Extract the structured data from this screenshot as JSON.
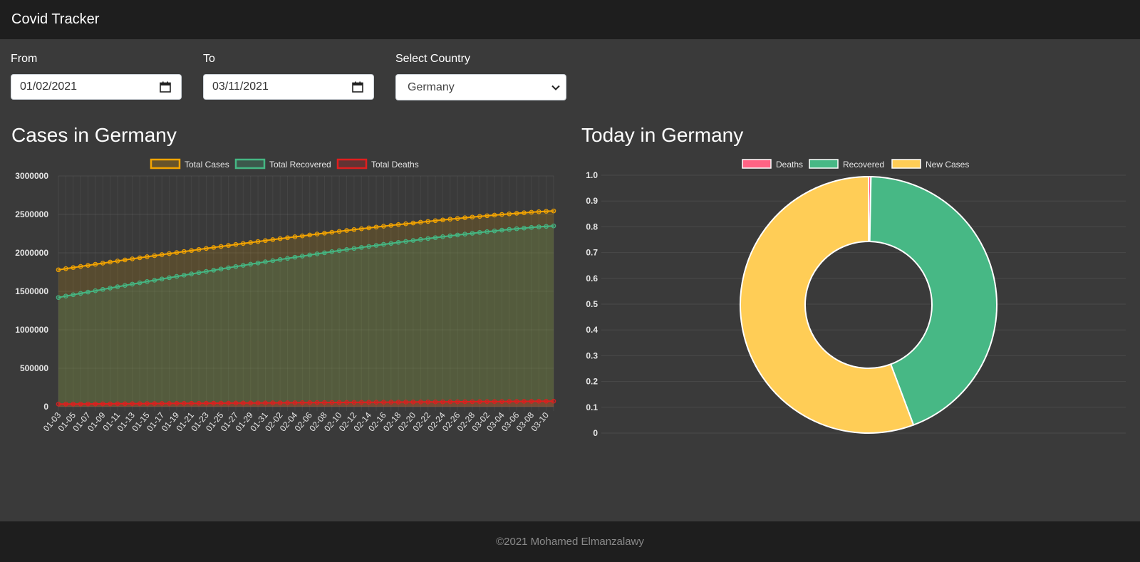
{
  "app": {
    "title": "Covid Tracker"
  },
  "filters": {
    "from_label": "From",
    "from_value": "01/02/2021",
    "to_label": "To",
    "to_value": "03/11/2021",
    "country_label": "Select Country",
    "country_value": "Germany"
  },
  "line_section": {
    "title": "Cases in Germany"
  },
  "donut_section": {
    "title": "Today in Germany"
  },
  "footer": {
    "text": "©2021 Mohamed Elmanzalawy"
  },
  "colors": {
    "page_bg": "#3a3a3a",
    "navbar_bg": "#1e1e1e",
    "total_cases": "#f5a500",
    "total_recovered": "#45b783",
    "total_deaths": "#e01e1e",
    "deaths": "#ff6384",
    "recovered": "#47b885",
    "new_cases": "#ffcd56"
  },
  "chart_data": [
    {
      "type": "line",
      "legend": [
        "Total Cases",
        "Total Recovered",
        "Total Deaths"
      ],
      "ylim": [
        0,
        3000000
      ],
      "yticks": [
        "0",
        "500000",
        "1000000",
        "1500000",
        "2000000",
        "2500000",
        "3000000"
      ],
      "x_tick_labels": [
        "01-03",
        "01-05",
        "01-07",
        "01-09",
        "01-11",
        "01-13",
        "01-15",
        "01-17",
        "01-19",
        "01-21",
        "01-23",
        "01-25",
        "01-27",
        "01-29",
        "01-31",
        "02-02",
        "02-04",
        "02-06",
        "02-08",
        "02-10",
        "02-12",
        "02-14",
        "02-16",
        "02-18",
        "02-20",
        "02-22",
        "02-24",
        "02-26",
        "02-28",
        "03-02",
        "03-04",
        "03-06",
        "03-08",
        "03-10"
      ],
      "series": [
        {
          "name": "Total Cases",
          "start": 1780000,
          "end": 2545000
        },
        {
          "name": "Total Recovered",
          "start": 1420000,
          "end": 2350000
        },
        {
          "name": "Total Deaths",
          "start": 34000,
          "end": 72000
        }
      ]
    },
    {
      "type": "pie",
      "style": "doughnut",
      "legend": [
        "Deaths",
        "Recovered",
        "New Cases"
      ],
      "yticks": [
        "0",
        "0.1",
        "0.2",
        "0.3",
        "0.4",
        "0.5",
        "0.6",
        "0.7",
        "0.8",
        "0.9",
        "1.0"
      ],
      "slices": [
        {
          "name": "Deaths",
          "value": 0.003
        },
        {
          "name": "Recovered",
          "value": 0.44
        },
        {
          "name": "New Cases",
          "value": 0.557
        }
      ]
    }
  ]
}
